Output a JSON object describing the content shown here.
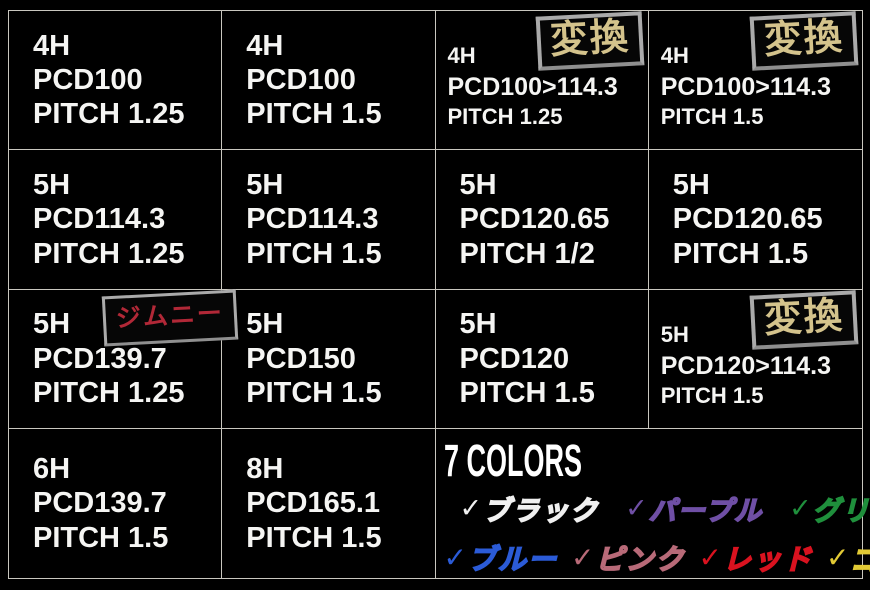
{
  "page": {
    "background": "#000000",
    "grid_line_color": "#c9c7bf",
    "text_color": "#f5f5f3",
    "badge_text_color": "#d4c38c",
    "badge_border_color": "#aaaaaa",
    "jimny_text_color": "#b12837"
  },
  "cells": [
    {
      "holes": "4H",
      "pcd": "PCD100",
      "pitch": "PITCH 1.25"
    },
    {
      "holes": "4H",
      "pcd": "PCD100",
      "pitch": "PITCH 1.5"
    },
    {
      "holes": "4H",
      "pcd": "PCD100>114.3",
      "pitch": "PITCH 1.25",
      "badge": "変換"
    },
    {
      "holes": "4H",
      "pcd": "PCD100>114.3",
      "pitch": "PITCH 1.5",
      "badge": "変換"
    },
    {
      "holes": "5H",
      "pcd": "PCD114.3",
      "pitch": "PITCH 1.25"
    },
    {
      "holes": "5H",
      "pcd": "PCD114.3",
      "pitch": "PITCH 1.5"
    },
    {
      "holes": "5H",
      "pcd": "PCD120.65",
      "pitch": "PITCH 1/2"
    },
    {
      "holes": "5H",
      "pcd": "PCD120.65",
      "pitch": "PITCH 1.5"
    },
    {
      "holes": "5H",
      "pcd": "PCD139.7",
      "pitch": "PITCH 1.25",
      "badge": "ジムニー"
    },
    {
      "holes": "5H",
      "pcd": "PCD150",
      "pitch": "PITCH 1.5"
    },
    {
      "holes": "5H",
      "pcd": "PCD120",
      "pitch": "PITCH 1.5"
    },
    {
      "holes": "5H",
      "pcd": "PCD120>114.3",
      "pitch": "PITCH 1.5",
      "badge": "変換"
    },
    {
      "holes": "6H",
      "pcd": "PCD139.7",
      "pitch": "PITCH 1.5"
    },
    {
      "holes": "8H",
      "pcd": "PCD165.1",
      "pitch": "PITCH 1.5"
    }
  ],
  "colors_section": {
    "title": "7 COLORS",
    "check_glyph": "✓",
    "items": [
      {
        "label": "ブラック",
        "color": "#f0f0f0"
      },
      {
        "label": "パープル",
        "color": "#6f4fa5"
      },
      {
        "label": "グリーン",
        "color": "#1f8f3c"
      },
      {
        "label": "ブルー",
        "color": "#2b5bd7"
      },
      {
        "label": "ピンク",
        "color": "#b86a78"
      },
      {
        "label": "レッド",
        "color": "#d9121f"
      },
      {
        "label": "ゴールド",
        "color": "#e2ca35"
      }
    ]
  }
}
